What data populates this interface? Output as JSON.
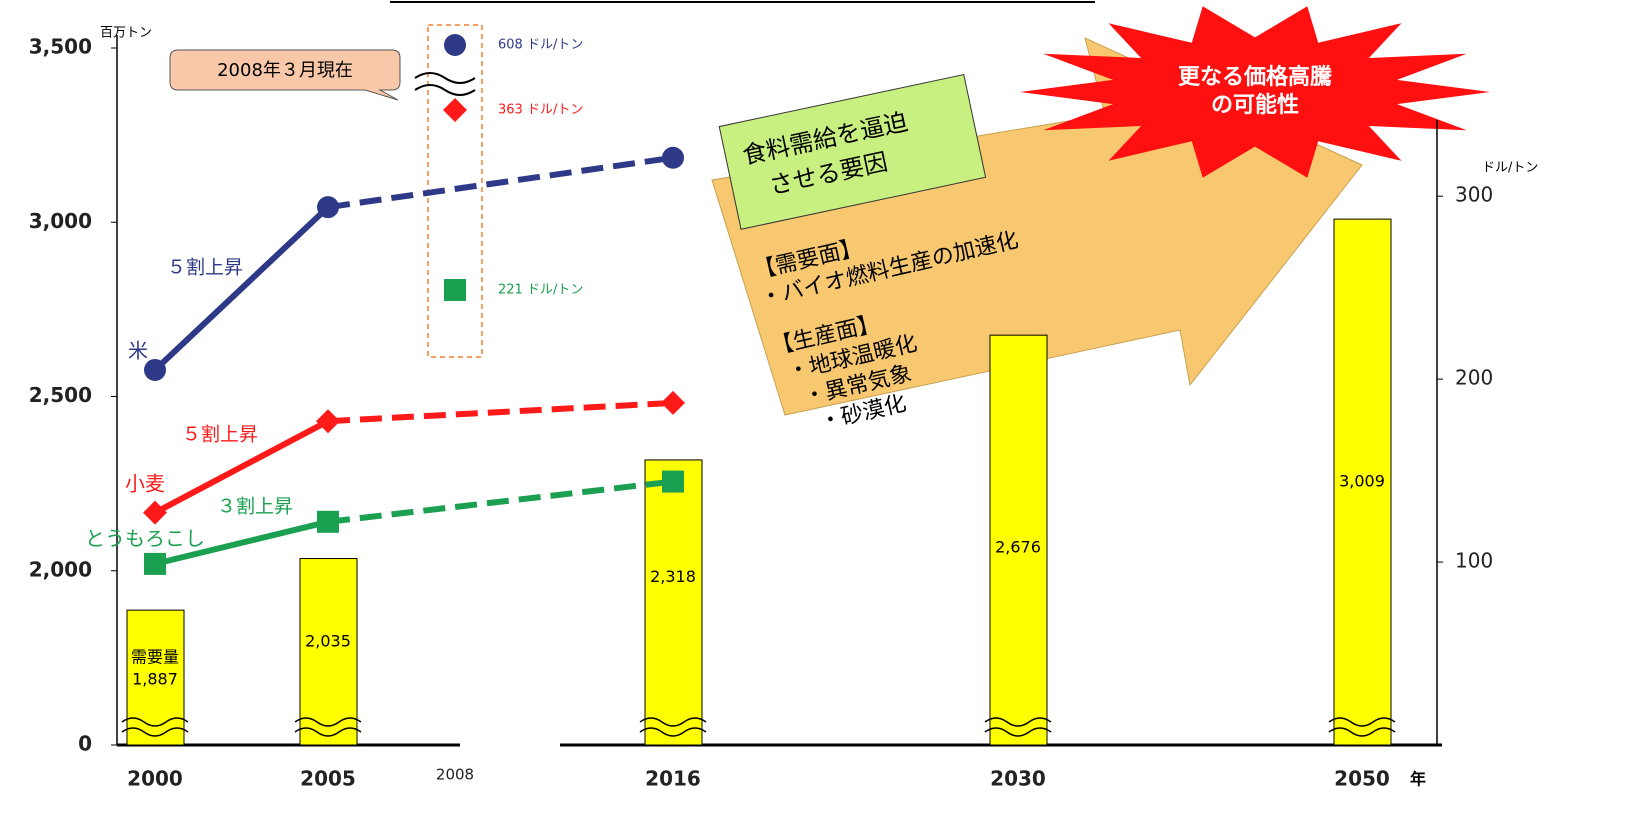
{
  "chart_data": {
    "type": "bar_line",
    "y_unit": "百万トン",
    "y2_unit": "ドル/トン",
    "x_unit": "年",
    "categories": [
      "2000",
      "2005",
      "2008",
      "2016",
      "2030",
      "2050"
    ],
    "ylim": [
      0,
      3500
    ],
    "y_break": [
      0,
      1500
    ],
    "yticks": [
      0,
      {
        "value": 2000,
        "label": "2,000"
      },
      {
        "value": 2500,
        "label": "2,500"
      },
      {
        "value": 3000,
        "label": "3,000"
      },
      {
        "value": 3500,
        "label": "3,500"
      }
    ],
    "y2lim": [
      0,
      381
    ],
    "y2ticks": [
      100,
      200,
      300
    ],
    "bars": {
      "name": "需要量",
      "color": "#ffff00",
      "values": [
        1887,
        2035,
        null,
        2318,
        2676,
        3009
      ],
      "value_labels": [
        "1,887",
        "2,035",
        null,
        "2,318",
        "2,676",
        "3,009"
      ]
    },
    "series": [
      {
        "name": "米",
        "color": "#2e3a87",
        "marker": "circle",
        "axis": "y2",
        "values": [
          205,
          294,
          null,
          321,
          null,
          null
        ],
        "rise_label": "５割上昇",
        "march_2008": {
          "value": 608,
          "label": "608 ドル/トン"
        }
      },
      {
        "name": "小麦",
        "color": "#ff1a1a",
        "marker": "diamond",
        "axis": "y2",
        "values": [
          127,
          177,
          null,
          187,
          null,
          null
        ],
        "rise_label": "５割上昇",
        "march_2008": {
          "value": 363,
          "label": "363 ドル/トン"
        }
      },
      {
        "name": "とうもろこし",
        "color": "#1aa050",
        "marker": "square",
        "axis": "y2",
        "values": [
          99,
          122,
          null,
          144,
          null,
          null
        ],
        "rise_label": "３割上昇",
        "march_2008": {
          "value": 221,
          "label": "221 ドル/トン"
        }
      }
    ],
    "annotations": {
      "as_of": "2008年３月現在",
      "scroll": [
        "食料需給を逼迫",
        "させる要因"
      ],
      "factors": [
        "【需要面】",
        "・バイオ燃料生産の加速化",
        "【生産面】",
        "・地球温暖化",
        "・異常気象",
        "・砂漠化"
      ],
      "burst": [
        "更なる価格高騰",
        "の可能性"
      ]
    }
  }
}
